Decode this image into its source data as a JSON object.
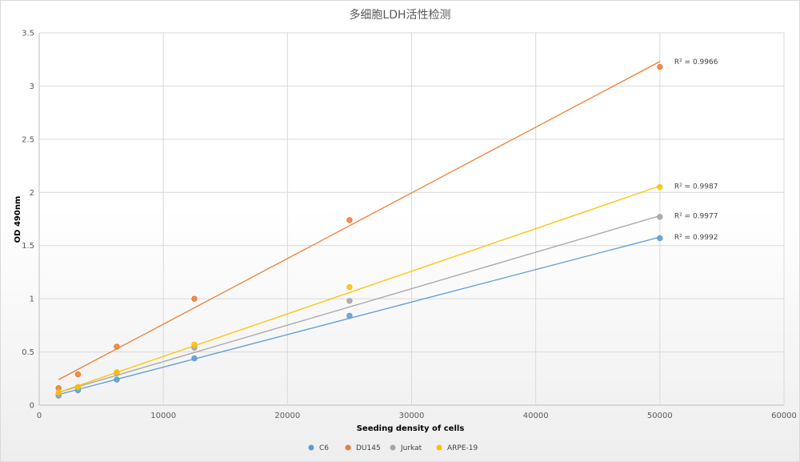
{
  "chart_data": {
    "type": "scatter",
    "title": "多细胞LDH活性检测",
    "xlabel": "Seeding density of cells",
    "ylabel": "OD 490nm",
    "xlim": [
      0,
      60000
    ],
    "ylim": [
      0,
      3.5
    ],
    "xticks": [
      0,
      10000,
      20000,
      30000,
      40000,
      50000,
      60000
    ],
    "yticks": [
      0,
      0.5,
      1,
      1.5,
      2,
      2.5,
      3,
      3.5
    ],
    "grid": true,
    "legend_position": "bottom",
    "x": [
      1560,
      3125,
      6250,
      12500,
      25000,
      50000
    ],
    "series": [
      {
        "name": "C6",
        "color": "#5b9bd5",
        "values": [
          0.09,
          0.14,
          0.24,
          0.44,
          0.84,
          1.57
        ],
        "trendline": {
          "y_start": 0.1,
          "y_end": 1.58
        },
        "r2_label": "R² = 0.9992"
      },
      {
        "name": "DU145",
        "color": "#ed7d31",
        "values": [
          0.16,
          0.29,
          0.55,
          1.0,
          1.74,
          3.18
        ],
        "trendline": {
          "y_start": 0.24,
          "y_end": 3.23
        },
        "r2_label": "R² = 0.9966"
      },
      {
        "name": "Jurkat",
        "color": "#a5a5a5",
        "values": [
          0.1,
          0.17,
          0.3,
          0.54,
          0.98,
          1.77
        ],
        "trendline": {
          "y_start": 0.12,
          "y_end": 1.78
        },
        "r2_label": "R² = 0.9977"
      },
      {
        "name": "ARPE-19",
        "color": "#ffc000",
        "values": [
          0.12,
          0.17,
          0.31,
          0.57,
          1.11,
          2.05
        ],
        "trendline": {
          "y_start": 0.12,
          "y_end": 2.06
        },
        "r2_label": "R² = 0.9987"
      }
    ]
  }
}
